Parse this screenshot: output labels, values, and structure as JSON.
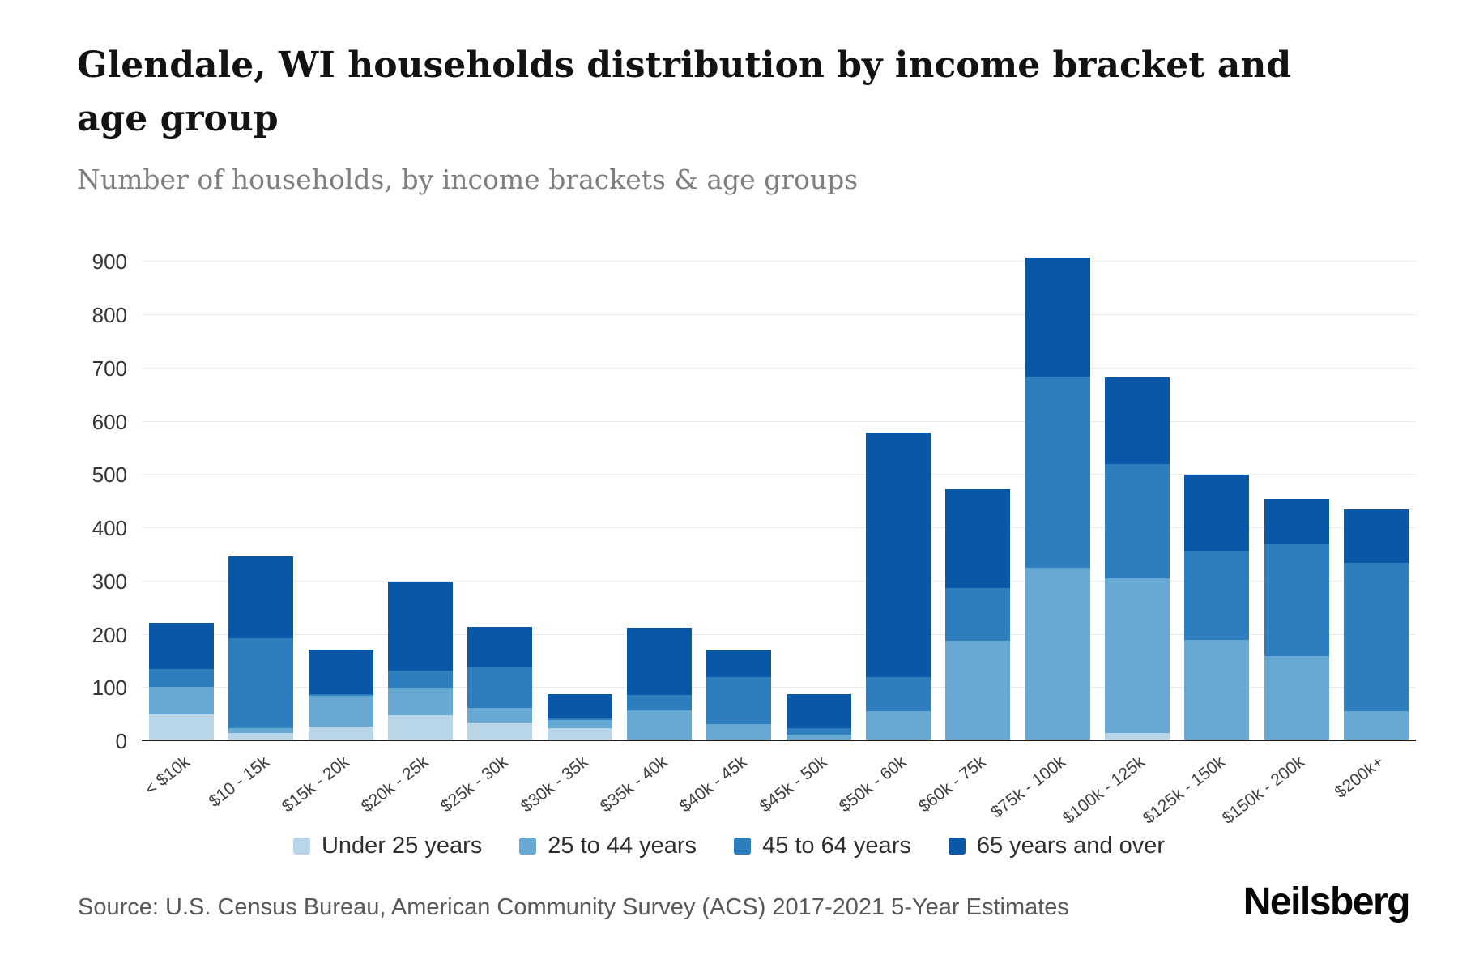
{
  "header": {
    "title": "Glendale, WI households distribution by income bracket and age group",
    "subtitle": "Number of households, by income brackets & age groups"
  },
  "footer": {
    "source": "Source: U.S. Census Bureau, American Community Survey (ACS) 2017-2021 5-Year Estimates",
    "brand": "Neilsberg"
  },
  "chart_data": {
    "type": "bar",
    "stacked": true,
    "title": "Glendale, WI households distribution by income bracket and age group",
    "subtitle": "Number of households, by income brackets & age groups",
    "xlabel": "",
    "ylabel": "",
    "ylim": [
      0,
      940
    ],
    "yticks": [
      0,
      100,
      200,
      300,
      400,
      500,
      600,
      700,
      800,
      900
    ],
    "grid": "horizontal",
    "legend_position": "bottom",
    "categories": [
      "< $10k",
      "$10 - 15k",
      "$15k - 20k",
      "$20k - 25k",
      "$25k - 30k",
      "$30k - 35k",
      "$35k - 40k",
      "$40k - 45k",
      "$45k - 50k",
      "$50k - 60k",
      "$60k - 75k",
      "$75k - 100k",
      "$100k - 125k",
      "$125k - 150k",
      "$150k - 200k",
      "$200k+"
    ],
    "series": [
      {
        "name": "Under 25 years",
        "color": "#b9d6e9",
        "values": [
          50,
          15,
          28,
          48,
          35,
          25,
          0,
          0,
          0,
          0,
          0,
          0,
          15,
          0,
          0,
          0
        ]
      },
      {
        "name": "25 to 44 years",
        "color": "#68a9d4",
        "values": [
          52,
          10,
          57,
          52,
          27,
          15,
          58,
          32,
          12,
          57,
          188,
          325,
          290,
          190,
          160,
          57
        ]
      },
      {
        "name": "45 to 64 years",
        "color": "#2e7dbc",
        "values": [
          33,
          168,
          3,
          32,
          76,
          3,
          28,
          88,
          13,
          63,
          100,
          360,
          215,
          168,
          210,
          278
        ]
      },
      {
        "name": "65 years and over",
        "color": "#0b57a7",
        "values": [
          87,
          154,
          84,
          168,
          77,
          45,
          127,
          50,
          63,
          460,
          185,
          223,
          163,
          142,
          85,
          100
        ]
      }
    ]
  }
}
